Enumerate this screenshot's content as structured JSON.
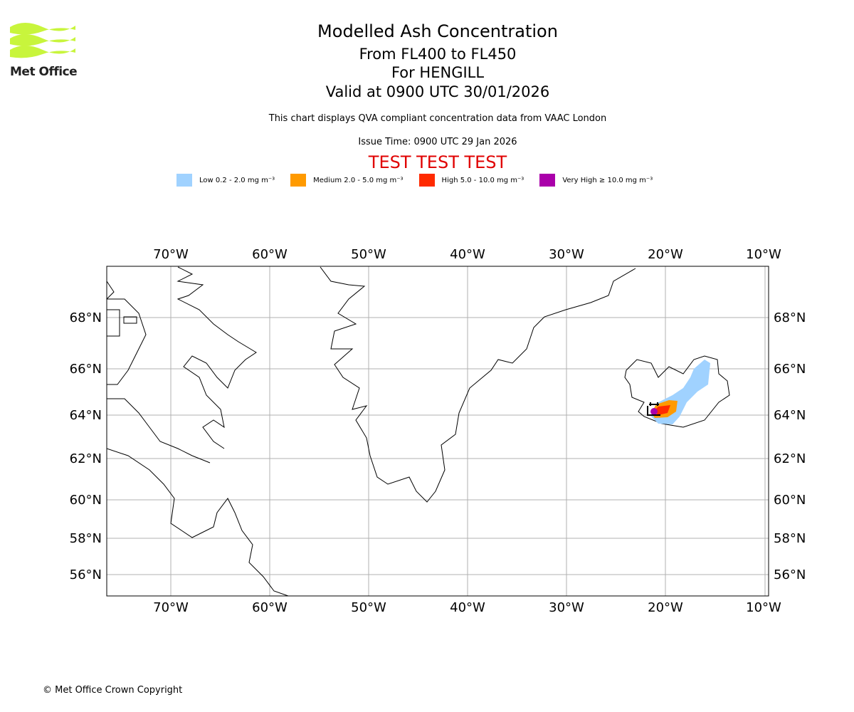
{
  "brand": {
    "name": "Met Office",
    "color": "#c8f53c"
  },
  "title": {
    "main": "Modelled Ash Concentration",
    "levels": "From FL400 to FL450",
    "volcano": "For HENGILL",
    "valid": "Valid at 0900 UTC 30/01/2026"
  },
  "description": "This chart displays QVA compliant concentration data from VAAC London",
  "issue_time": "Issue Time: 0900 UTC 29 Jan 2026",
  "test_banner": "TEST TEST TEST",
  "legend": [
    {
      "label": "Low 0.2 - 2.0 mg m⁻³",
      "color": "#a0d2ff"
    },
    {
      "label": "Medium 2.0 - 5.0 mg m⁻³",
      "color": "#ff9a00"
    },
    {
      "label": "High 5.0 - 10.0 mg m⁻³",
      "color": "#ff2a00"
    },
    {
      "label": "Very High ≥ 10.0 mg m⁻³",
      "color": "#aa00aa"
    }
  ],
  "map": {
    "lon_labels": [
      "70°W",
      "60°W",
      "50°W",
      "40°W",
      "30°W",
      "20°W",
      "10°W"
    ],
    "lat_labels": [
      "68°N",
      "66°N",
      "64°N",
      "62°N",
      "60°N",
      "58°N",
      "56°N"
    ]
  },
  "copyright": "© Met Office Crown Copyright"
}
